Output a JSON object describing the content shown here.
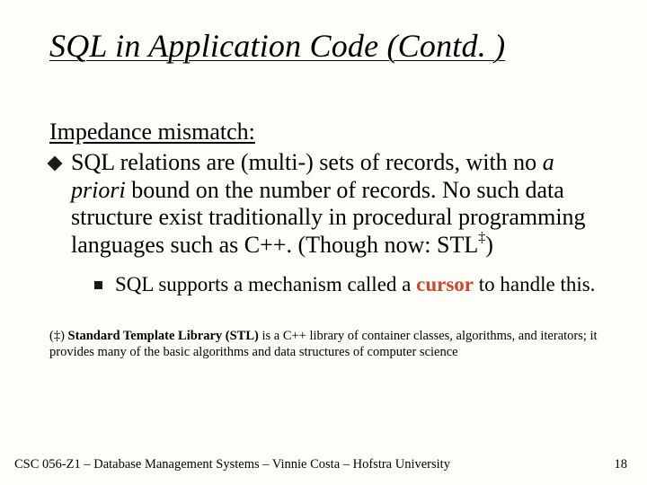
{
  "title": "SQL in Application Code (Contd. )",
  "subheading": "Impedance mismatch:",
  "bullet1_part1": "SQL relations are (multi-) sets of records, with no ",
  "bullet1_italic": "a priori",
  "bullet1_part2": " bound on the number of records.  No such data structure exist traditionally in procedural programming languages such as C++.  (Though now: STL",
  "bullet1_dagger": "‡",
  "bullet1_part3": ")",
  "sub1_part1": "SQL supports a mechanism called a ",
  "sub1_cursor": "cursor",
  "sub1_part2": " to handle this.",
  "footnote_dagger": "(‡) ",
  "footnote_bold": "Standard Template Library (STL)",
  "footnote_rest": " is a C++ library of container classes, algorithms, and iterators; it provides many of the basic algorithms and data structures of computer science",
  "footer": "CSC 056-Z1 – Database Management Systems – Vinnie Costa – Hofstra University",
  "pagenum": "18",
  "colors": {
    "background": "#fefef8",
    "text": "#000000",
    "cursor": "#c64a2e",
    "bullet": "#1a1a1a"
  }
}
